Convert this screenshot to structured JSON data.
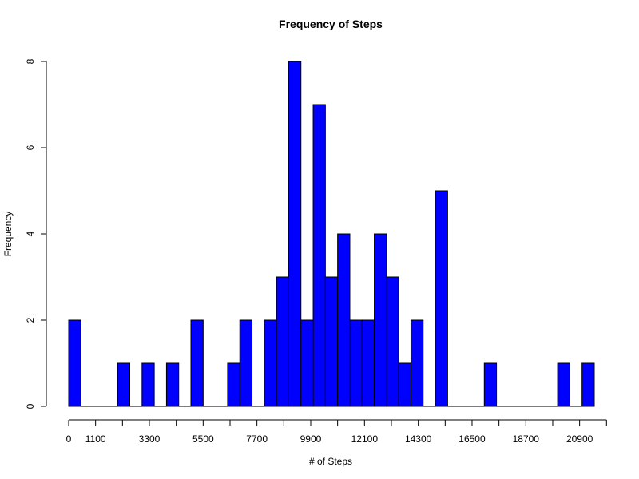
{
  "chart_data": {
    "type": "bar",
    "title": "Frequency of Steps",
    "xlabel": "# of Steps",
    "ylabel": "Frequency",
    "bar_color": "#0000ff",
    "bin_width": 500,
    "x_start": 0,
    "xlim": [
      0,
      22000
    ],
    "ylim": [
      0,
      8
    ],
    "x_major_ticks": [
      0,
      1100,
      3300,
      5500,
      7700,
      9900,
      12100,
      14300,
      16500,
      18700,
      20900
    ],
    "y_ticks": [
      0,
      2,
      4,
      6,
      8
    ],
    "values": [
      2,
      0,
      0,
      0,
      1,
      0,
      1,
      0,
      1,
      0,
      2,
      0,
      0,
      1,
      2,
      0,
      2,
      3,
      8,
      2,
      7,
      3,
      4,
      2,
      2,
      4,
      3,
      1,
      2,
      0,
      5,
      0,
      0,
      0,
      1,
      0,
      0,
      0,
      0,
      0,
      1,
      0,
      1
    ],
    "grid": false
  }
}
